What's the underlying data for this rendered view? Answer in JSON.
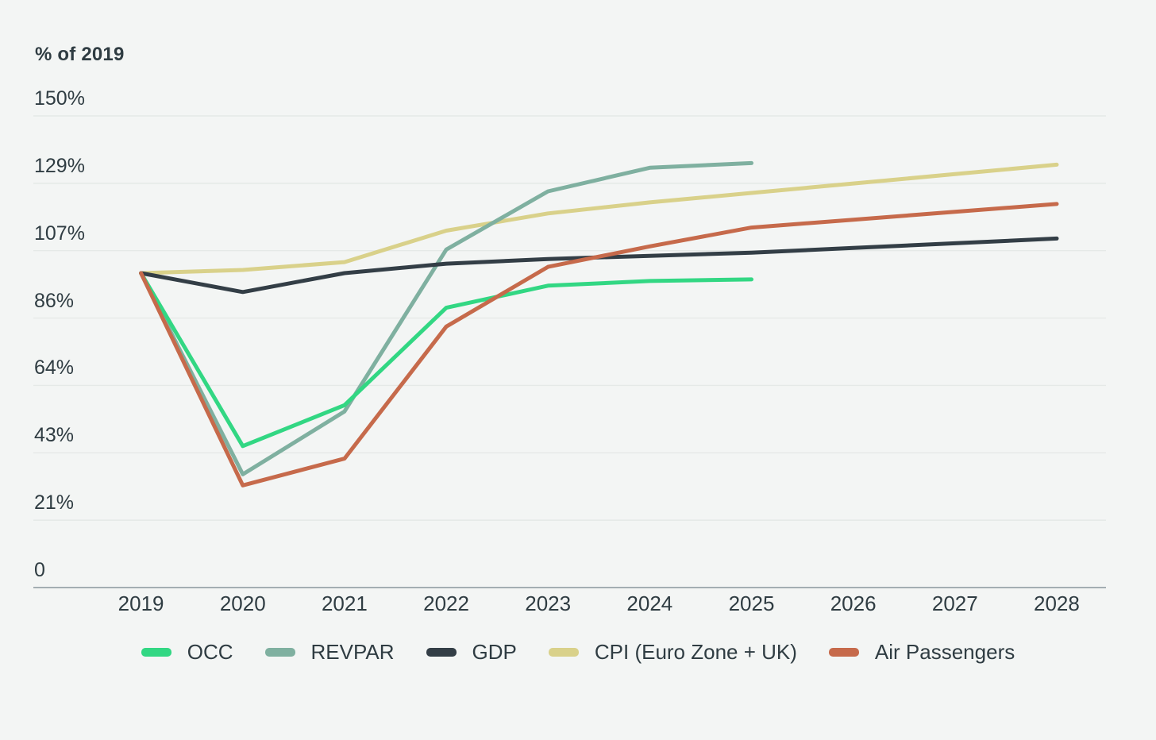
{
  "chart_data": {
    "type": "line",
    "title": "% of 2019",
    "x_labels": [
      "2019",
      "2020",
      "2021",
      "2022",
      "2023",
      "2024",
      "2025",
      "2026",
      "2027",
      "2028"
    ],
    "y_ticks": [
      {
        "label": "150%",
        "value": 150
      },
      {
        "label": "129%",
        "value": 128.57
      },
      {
        "label": "107%",
        "value": 107.14
      },
      {
        "label": "86%",
        "value": 85.71
      },
      {
        "label": "64%",
        "value": 64.29
      },
      {
        "label": "43%",
        "value": 42.86
      },
      {
        "label": "21%",
        "value": 21.43
      },
      {
        "label": "0",
        "value": 0
      }
    ],
    "ylim": [
      0,
      150
    ],
    "grid": true,
    "legend_position": "bottom",
    "series": [
      {
        "name": "OCC",
        "color": "#32d783",
        "values": [
          100,
          45,
          58,
          89,
          96,
          97.5,
          98,
          null,
          null,
          null
        ]
      },
      {
        "name": "REVPAR",
        "color": "#7fb0a0",
        "values": [
          100,
          36,
          56,
          107.5,
          126,
          133.5,
          135,
          null,
          null,
          null
        ]
      },
      {
        "name": "GDP",
        "color": "#333e46",
        "values": [
          100,
          94,
          100,
          103,
          104.5,
          105.5,
          106.5,
          108,
          109.5,
          111
        ]
      },
      {
        "name": "CPI (Euro Zone + UK)",
        "color": "#d9d18a",
        "values": [
          100,
          101,
          103.5,
          113.5,
          119,
          122.5,
          125.5,
          128.5,
          131.5,
          134.5
        ]
      },
      {
        "name": "Air Passengers",
        "color": "#c66a4b",
        "values": [
          100,
          32.5,
          41,
          83,
          102,
          108.5,
          114.5,
          117,
          119.5,
          122
        ]
      }
    ],
    "draw_order": [
      3,
      1,
      0,
      2,
      4
    ],
    "colors": {
      "background": "#f3f5f4",
      "gridline": "#e5e9e7",
      "axis_line": "#8a969b",
      "text": "#2f3c42"
    }
  }
}
